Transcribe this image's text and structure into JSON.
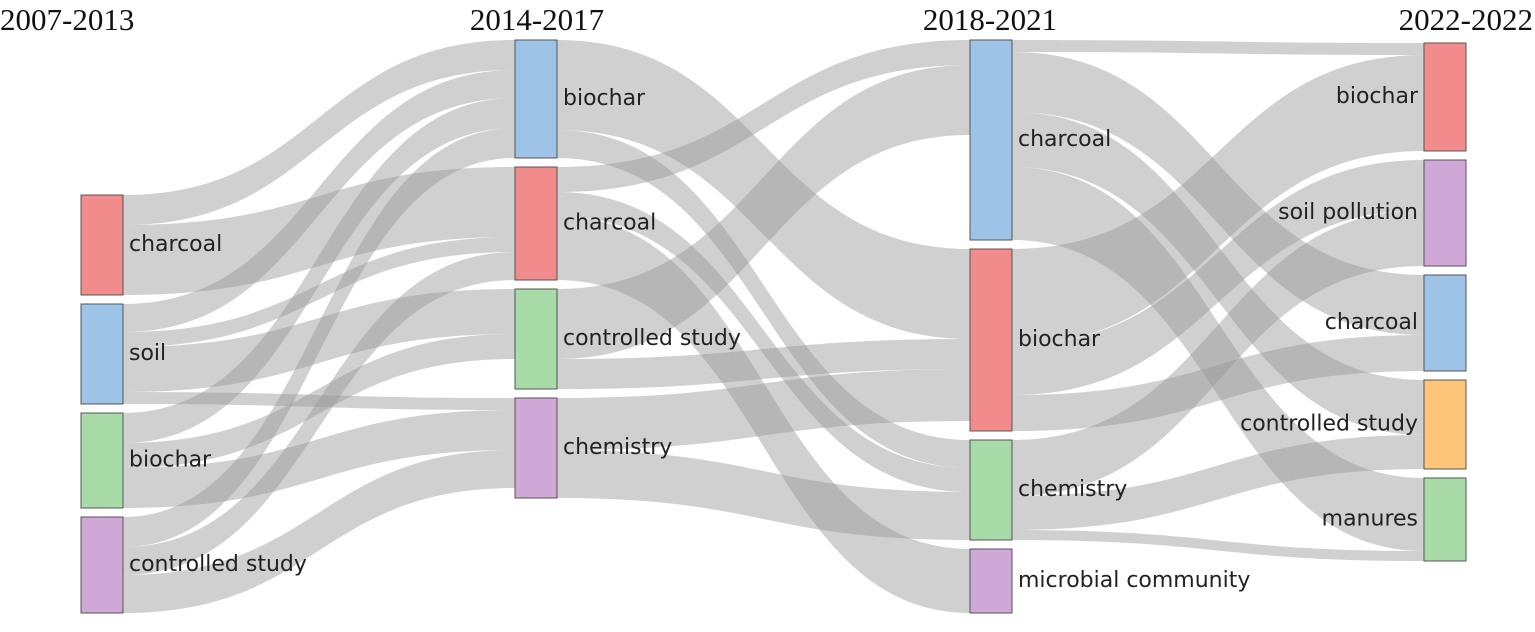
{
  "chart_data": {
    "type": "sankey",
    "columns": [
      "2007-2013",
      "2014-2017",
      "2018-2021",
      "2022-2022"
    ],
    "nodes": [
      {
        "name": "charcoal",
        "column": 0,
        "color": "#f28b8b"
      },
      {
        "name": "soil",
        "column": 0,
        "color": "#9dc3e6"
      },
      {
        "name": "biochar",
        "column": 0,
        "color": "#a8dba8"
      },
      {
        "name": "controlled study",
        "column": 0,
        "color": "#d0a8d8"
      },
      {
        "name": "biochar",
        "column": 1,
        "color": "#9dc3e6"
      },
      {
        "name": "charcoal",
        "column": 1,
        "color": "#f28b8b"
      },
      {
        "name": "controlled study",
        "column": 1,
        "color": "#a8dba8"
      },
      {
        "name": "chemistry",
        "column": 1,
        "color": "#d0a8d8"
      },
      {
        "name": "charcoal",
        "column": 2,
        "color": "#9dc3e6"
      },
      {
        "name": "biochar",
        "column": 2,
        "color": "#f28b8b"
      },
      {
        "name": "chemistry",
        "column": 2,
        "color": "#a8dba8"
      },
      {
        "name": "microbial community",
        "column": 2,
        "color": "#d0a8d8"
      },
      {
        "name": "biochar",
        "column": 3,
        "color": "#f28b8b"
      },
      {
        "name": "soil pollution",
        "column": 3,
        "color": "#d0a8d8"
      },
      {
        "name": "charcoal",
        "column": 3,
        "color": "#9dc3e6"
      },
      {
        "name": "controlled study",
        "column": 3,
        "color": "#fdc57a"
      },
      {
        "name": "manures",
        "column": 3,
        "color": "#a8dba8"
      }
    ],
    "links": [
      {
        "source": 0,
        "target": 4,
        "value": 30
      },
      {
        "source": 0,
        "target": 5,
        "value": 70
      },
      {
        "source": 1,
        "target": 4,
        "value": 28
      },
      {
        "source": 1,
        "target": 5,
        "value": 15
      },
      {
        "source": 1,
        "target": 6,
        "value": 45
      },
      {
        "source": 1,
        "target": 7,
        "value": 12
      },
      {
        "source": 2,
        "target": 4,
        "value": 30
      },
      {
        "source": 2,
        "target": 6,
        "value": 25
      },
      {
        "source": 2,
        "target": 7,
        "value": 40
      },
      {
        "source": 3,
        "target": 4,
        "value": 30
      },
      {
        "source": 3,
        "target": 5,
        "value": 28
      },
      {
        "source": 3,
        "target": 7,
        "value": 38
      },
      {
        "source": 4,
        "target": 9,
        "value": 90
      },
      {
        "source": 4,
        "target": 10,
        "value": 28
      },
      {
        "source": 5,
        "target": 8,
        "value": 25
      },
      {
        "source": 5,
        "target": 10,
        "value": 24
      },
      {
        "source": 5,
        "target": 11,
        "value": 64
      },
      {
        "source": 6,
        "target": 8,
        "value": 70
      },
      {
        "source": 6,
        "target": 9,
        "value": 30
      },
      {
        "source": 7,
        "target": 9,
        "value": 52
      },
      {
        "source": 7,
        "target": 10,
        "value": 48
      },
      {
        "source": 8,
        "target": 12,
        "value": 12
      },
      {
        "source": 8,
        "target": 14,
        "value": 60
      },
      {
        "source": 8,
        "target": 15,
        "value": 55
      },
      {
        "source": 8,
        "target": 16,
        "value": 73
      },
      {
        "source": 9,
        "target": 12,
        "value": 96
      },
      {
        "source": 9,
        "target": 13,
        "value": 50
      },
      {
        "source": 9,
        "target": 14,
        "value": 36
      },
      {
        "source": 10,
        "target": 13,
        "value": 56
      },
      {
        "source": 10,
        "target": 15,
        "value": 34
      },
      {
        "source": 10,
        "target": 16,
        "value": 10
      }
    ]
  }
}
